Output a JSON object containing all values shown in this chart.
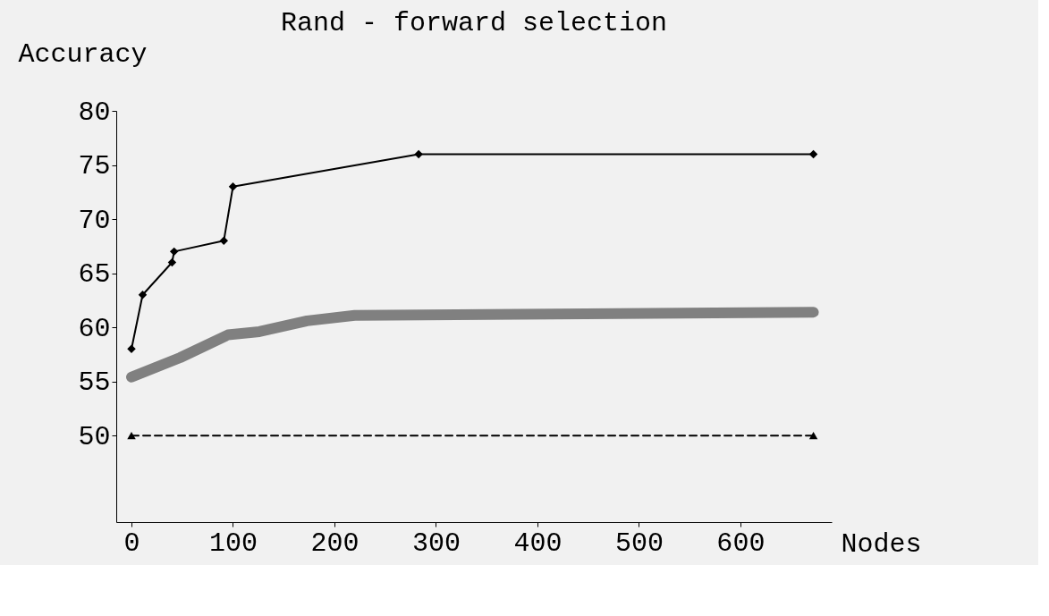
{
  "chart_data": {
    "type": "line",
    "title": "Rand - forward selection",
    "xlabel": "Nodes",
    "ylabel": "Accuracy",
    "xlim": [
      -15,
      690
    ],
    "ylim": [
      42,
      80
    ],
    "xticks": [
      0,
      100,
      200,
      300,
      400,
      500,
      600
    ],
    "yticks": [
      50,
      55,
      60,
      65,
      70,
      75,
      80
    ],
    "grid": false,
    "series": [
      {
        "color": "#000000",
        "marker": "diamond",
        "line_style": "solid",
        "x": [
          0,
          11,
          40,
          42,
          91,
          100,
          283,
          672
        ],
        "values": [
          58,
          63,
          66,
          67,
          68,
          73,
          76,
          76
        ]
      },
      {
        "color": "#808080",
        "marker": "none",
        "line_style": "solid",
        "x": [
          0,
          48,
          95,
          126,
          173,
          220,
          672
        ],
        "values": [
          55.4,
          57.2,
          59.3,
          59.6,
          60.6,
          61.1,
          61.4
        ]
      },
      {
        "color": "#000000",
        "marker": "triangle",
        "line_style": "dashed",
        "x": [
          0,
          672
        ],
        "values": [
          50,
          50
        ]
      }
    ]
  }
}
